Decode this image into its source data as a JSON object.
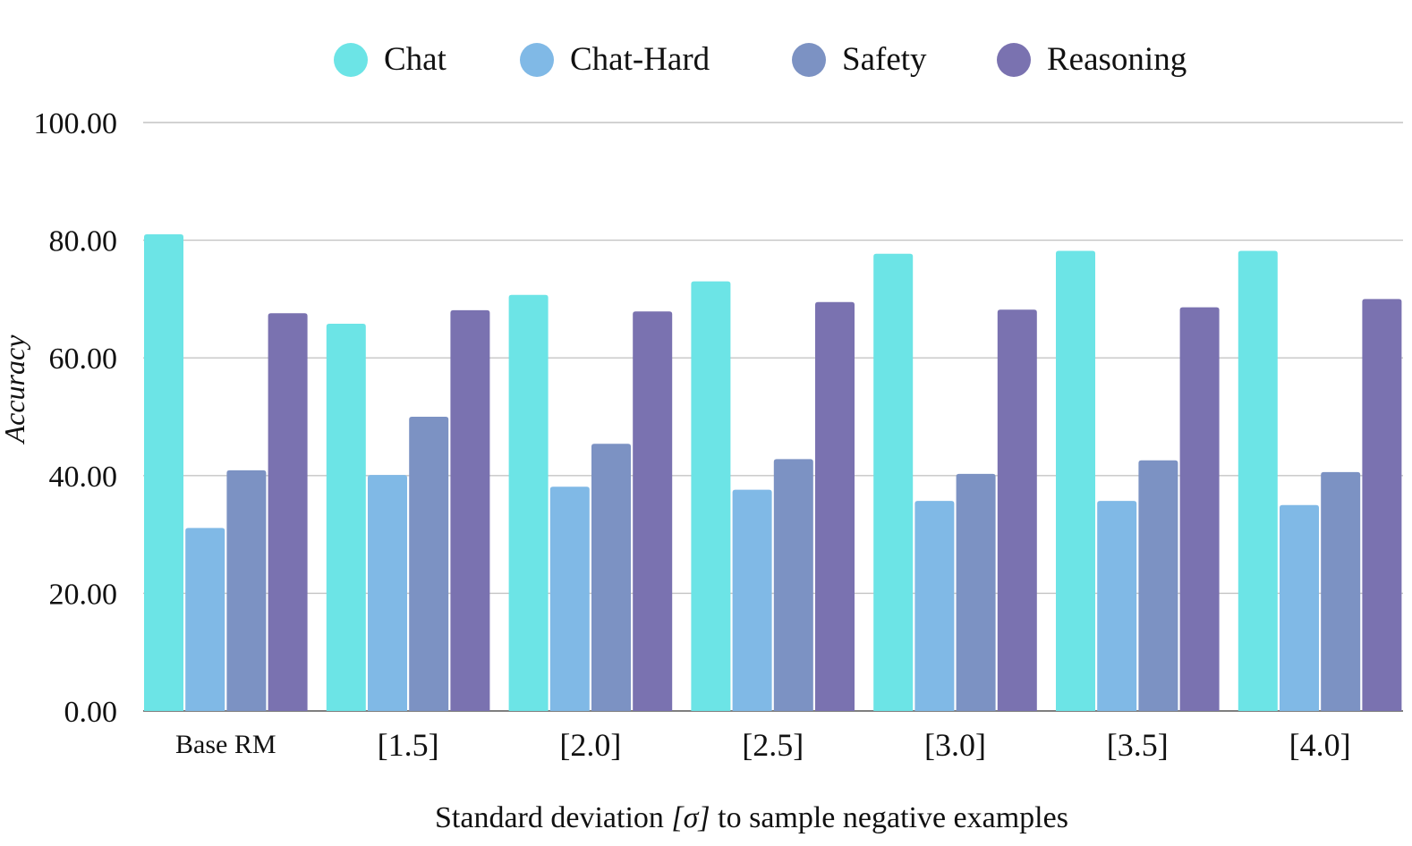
{
  "chart_data": {
    "type": "bar",
    "title": "",
    "xlabel_prefix": "Standard deviation ",
    "xlabel_symbol": "[σ]",
    "xlabel_suffix": " to sample negative examples",
    "ylabel": "Accuracy",
    "ylim": [
      0,
      100
    ],
    "yticks": [
      "0.00",
      "20.00",
      "40.00",
      "60.00",
      "80.00",
      "100.00"
    ],
    "ytick_values": [
      0,
      20,
      40,
      60,
      80,
      100
    ],
    "grid": true,
    "legend_position": "top-center",
    "categories": [
      "Base RM",
      "[1.5]",
      "[2.0]",
      "[2.5]",
      "[3.0]",
      "[3.5]",
      "[4.0]"
    ],
    "series": [
      {
        "name": "Chat",
        "color": "#6ce4e6",
        "values": [
          81.0,
          65.8,
          70.7,
          73.0,
          77.7,
          78.2,
          78.2
        ]
      },
      {
        "name": "Chat-Hard",
        "color": "#80b9e6",
        "values": [
          31.1,
          40.1,
          38.1,
          37.6,
          35.7,
          35.7,
          35.0
        ]
      },
      {
        "name": "Safety",
        "color": "#7c92c3",
        "values": [
          40.9,
          50.0,
          45.4,
          42.8,
          40.3,
          42.6,
          40.6
        ]
      },
      {
        "name": "Reasoning",
        "color": "#7a72b0",
        "values": [
          67.6,
          68.1,
          67.9,
          69.5,
          68.2,
          68.6,
          70.0
        ]
      }
    ]
  }
}
